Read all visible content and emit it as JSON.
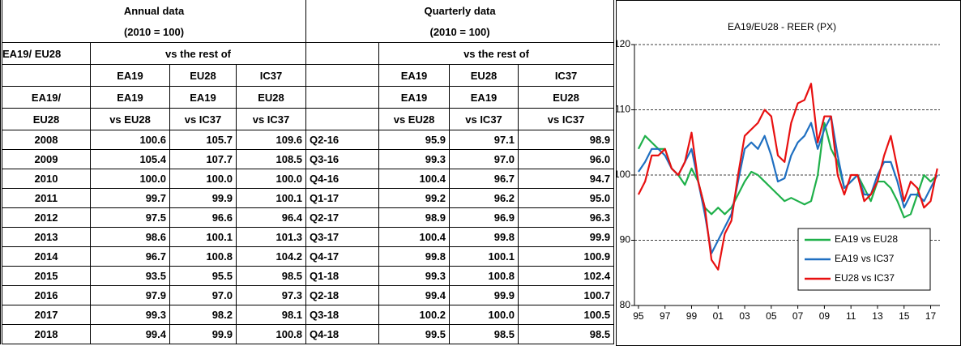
{
  "table": {
    "group": "EA19/ EU28",
    "corner": [
      "EA19/",
      "EU28"
    ],
    "annual": {
      "title": "Annual data",
      "base": "(2010 = 100)",
      "subtitle": "vs the rest of",
      "columns": [
        [
          "EA19",
          "EA19",
          "vs EU28"
        ],
        [
          "EU28",
          "EA19",
          "vs IC37"
        ],
        [
          "IC37",
          "EU28",
          "vs IC37"
        ]
      ],
      "rows": [
        [
          "2008",
          "100.6",
          "105.7",
          "109.6"
        ],
        [
          "2009",
          "105.4",
          "107.7",
          "108.5"
        ],
        [
          "2010",
          "100.0",
          "100.0",
          "100.0"
        ],
        [
          "2011",
          "99.7",
          "99.9",
          "100.1"
        ],
        [
          "2012",
          "97.5",
          "96.6",
          "96.4"
        ],
        [
          "2013",
          "98.6",
          "100.1",
          "101.3"
        ],
        [
          "2014",
          "96.7",
          "100.8",
          "104.2"
        ],
        [
          "2015",
          "93.5",
          "95.5",
          "98.5"
        ],
        [
          "2016",
          "97.9",
          "97.0",
          "97.3"
        ],
        [
          "2017",
          "99.3",
          "98.2",
          "98.1"
        ],
        [
          "2018",
          "99.4",
          "99.9",
          "100.8"
        ]
      ]
    },
    "quarterly": {
      "title": "Quarterly data",
      "base": "(2010 = 100)",
      "subtitle": "vs the rest of",
      "columns": [
        [
          "EA19",
          "EA19",
          "vs EU28"
        ],
        [
          "EU28",
          "EA19",
          "vs IC37"
        ],
        [
          "IC37",
          "EU28",
          "vs IC37"
        ]
      ],
      "rows": [
        [
          "Q2-16",
          "95.9",
          "97.1",
          "98.9"
        ],
        [
          "Q3-16",
          "99.3",
          "97.0",
          "96.0"
        ],
        [
          "Q4-16",
          "100.4",
          "96.7",
          "94.7"
        ],
        [
          "Q1-17",
          "99.2",
          "96.2",
          "95.0"
        ],
        [
          "Q2-17",
          "98.9",
          "96.9",
          "96.3"
        ],
        [
          "Q3-17",
          "100.4",
          "99.8",
          "99.9"
        ],
        [
          "Q4-17",
          "99.8",
          "100.1",
          "100.9"
        ],
        [
          "Q1-18",
          "99.3",
          "100.8",
          "102.4"
        ],
        [
          "Q2-18",
          "99.4",
          "99.9",
          "100.7"
        ],
        [
          "Q3-18",
          "100.2",
          "100.0",
          "100.5"
        ],
        [
          "Q4-18",
          "99.5",
          "98.5",
          "98.5"
        ]
      ]
    }
  },
  "chart_data": {
    "type": "line",
    "title": "EA19/EU28 - REER (PX)",
    "x": [
      1995,
      1995.5,
      1996,
      1996.5,
      1997,
      1997.5,
      1998,
      1998.5,
      1999,
      1999.5,
      2000,
      2000.5,
      2001,
      2001.5,
      2002,
      2002.5,
      2003,
      2003.5,
      2004,
      2004.5,
      2005,
      2005.5,
      2006,
      2006.5,
      2007,
      2007.5,
      2008,
      2008.5,
      2009,
      2009.5,
      2010,
      2010.5,
      2011,
      2011.5,
      2012,
      2012.5,
      2013,
      2013.5,
      2014,
      2014.5,
      2015,
      2015.5,
      2016,
      2016.5,
      2017,
      2017.5
    ],
    "series": [
      {
        "name": "EA19 vs EU28",
        "color": "#1fb04a",
        "values": [
          104,
          106,
          105,
          104,
          104,
          101,
          100,
          98.5,
          101,
          99,
          95,
          94,
          95,
          94,
          95,
          97,
          99,
          100.5,
          100,
          99,
          98,
          97,
          96,
          96.5,
          96,
          95.5,
          96,
          100,
          108,
          104,
          102,
          98,
          99,
          100,
          98,
          96,
          99,
          99,
          98,
          96,
          93.5,
          94,
          97,
          100,
          99,
          100
        ]
      },
      {
        "name": "EA19 vs IC37",
        "color": "#1f6fc1",
        "values": [
          100.5,
          102,
          104,
          104,
          103,
          101,
          100,
          102,
          104,
          99,
          94,
          88,
          90,
          92,
          94,
          99,
          104,
          105,
          104,
          106,
          103,
          99,
          99.5,
          103,
          105,
          106,
          108,
          104,
          107,
          109,
          103,
          98,
          99,
          100,
          97,
          97,
          100,
          102,
          102,
          99,
          95,
          97,
          97,
          96,
          98,
          100
        ]
      },
      {
        "name": "EU28 vs IC37",
        "color": "#e81010",
        "values": [
          97,
          99,
          103,
          103,
          104,
          101,
          100,
          102,
          106.5,
          99,
          95,
          87,
          85.5,
          91,
          93,
          100,
          106,
          107,
          108,
          110,
          109,
          103,
          102,
          108,
          111,
          111.5,
          114,
          105,
          109,
          109,
          100,
          97,
          100,
          100,
          96,
          97,
          99,
          103,
          106,
          101,
          96,
          99,
          98,
          95,
          96,
          101
        ]
      }
    ],
    "xlim": [
      1994.7,
      2017.7
    ],
    "xticks": [
      {
        "value": 1995,
        "label": "95"
      },
      {
        "value": 1997,
        "label": "97"
      },
      {
        "value": 1999,
        "label": "99"
      },
      {
        "value": 2001,
        "label": "01"
      },
      {
        "value": 2003,
        "label": "03"
      },
      {
        "value": 2005,
        "label": "05"
      },
      {
        "value": 2007,
        "label": "07"
      },
      {
        "value": 2009,
        "label": "09"
      },
      {
        "value": 2011,
        "label": "11"
      },
      {
        "value": 2013,
        "label": "13"
      },
      {
        "value": 2015,
        "label": "15"
      },
      {
        "value": 2017,
        "label": "17"
      }
    ],
    "ylim": [
      80,
      120
    ],
    "yticks": [
      80,
      90,
      100,
      110,
      120
    ],
    "grid": true,
    "legend": "lower right"
  }
}
